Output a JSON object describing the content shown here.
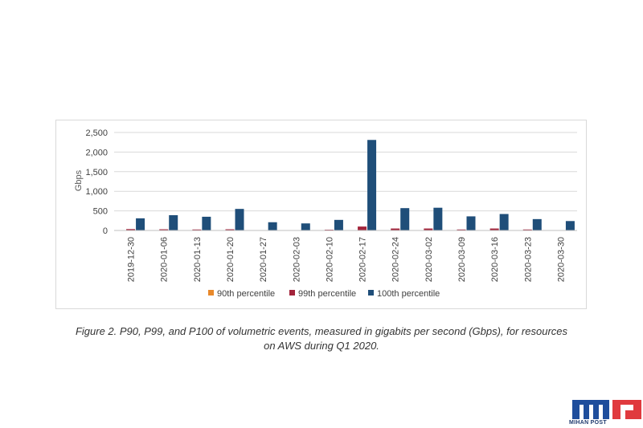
{
  "chart_data": {
    "type": "bar",
    "title": "",
    "xlabel": "",
    "ylabel": "Gbps",
    "ylim": [
      0,
      2500
    ],
    "yticks": [
      "2,500",
      "2,000",
      "1,500",
      "1,000",
      "500",
      "0"
    ],
    "ytick_values": [
      2500,
      2000,
      1500,
      1000,
      500,
      0
    ],
    "grid": true,
    "legend_position": "bottom",
    "categories": [
      "2019-12-30",
      "2020-01-06",
      "2020-01-13",
      "2020-01-20",
      "2020-01-27",
      "2020-02-03",
      "2020-02-10",
      "2020-02-17",
      "2020-02-24",
      "2020-03-02",
      "2020-03-09",
      "2020-03-16",
      "2020-03-23",
      "2020-03-30"
    ],
    "series": [
      {
        "name": "90th percentile",
        "color": "#e8892b",
        "values": [
          5,
          5,
          5,
          5,
          5,
          5,
          5,
          10,
          5,
          5,
          5,
          5,
          5,
          5
        ]
      },
      {
        "name": "99th percentile",
        "color": "#a3243b",
        "values": [
          35,
          30,
          25,
          30,
          10,
          10,
          20,
          100,
          50,
          50,
          25,
          50,
          25,
          10
        ]
      },
      {
        "name": "100th percentile",
        "color": "#1f4e79",
        "values": [
          310,
          390,
          350,
          550,
          210,
          180,
          270,
          2310,
          570,
          580,
          360,
          420,
          290,
          240
        ]
      }
    ]
  },
  "caption": {
    "line1": "Figure 2. P90, P99, and P100 of volumetric events, measured in gigabits per second (Gbps), for resources",
    "line2": "on AWS during Q1 2020."
  },
  "logo": {
    "text": "MIHAN POST",
    "colors": {
      "blue": "#1f4e9c",
      "red": "#e03a3e"
    }
  }
}
